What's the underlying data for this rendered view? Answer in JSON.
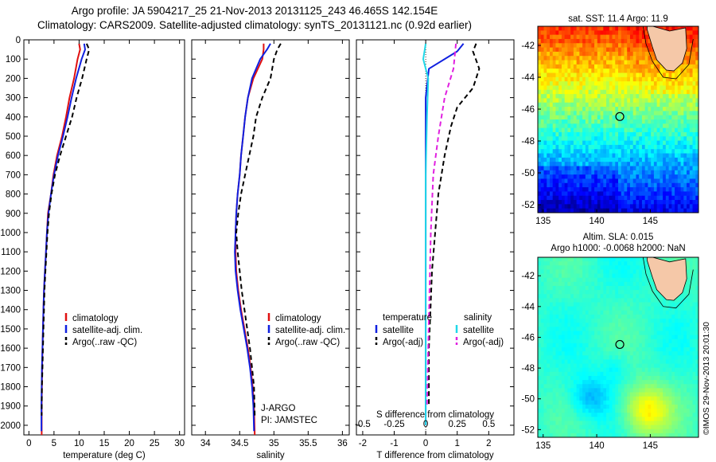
{
  "header": {
    "line1": "Argo profile: JA 5904217_25 21-Nov-2013 20131125_243 46.465S 142.154E",
    "line2": "Climatology: CARS2009. Satellite-adjusted climatology: synTS_20131121.nc (0.92d earlier)"
  },
  "colors": {
    "climatology": "#e01010",
    "satellite": "#1020e0",
    "argo": "#000000",
    "satellite_s": "#20d8e8",
    "argo_adj_s": "#e020e0"
  },
  "chart_data": [
    {
      "type": "line",
      "id": "temperature",
      "xlabel": "temperature (deg C)",
      "ylabel": "",
      "xlim": [
        -1,
        31
      ],
      "ylim": [
        2050,
        0
      ],
      "xticks": [
        0,
        5,
        10,
        15,
        20,
        25,
        30
      ],
      "yticks": [
        0,
        100,
        200,
        300,
        400,
        500,
        600,
        700,
        800,
        900,
        1000,
        1100,
        1200,
        1300,
        1400,
        1500,
        1600,
        1700,
        1800,
        1900,
        2000
      ],
      "legend": [
        "climatology",
        "satellite-adj. clim.",
        "Argo(..raw -QC)"
      ],
      "series": [
        {
          "name": "climatology",
          "style": "solid",
          "color": "#e01010",
          "x": [
            10.0,
            10.2,
            9.7,
            9.0,
            8.1,
            7.4,
            6.6,
            5.6,
            4.9,
            4.4,
            3.8,
            3.6,
            3.4,
            3.2,
            3.0,
            2.9,
            2.8,
            2.7,
            2.65,
            2.6,
            2.55,
            2.55
          ],
          "y": [
            20,
            50,
            100,
            200,
            300,
            400,
            500,
            600,
            700,
            800,
            900,
            1000,
            1100,
            1200,
            1300,
            1400,
            1500,
            1600,
            1700,
            1800,
            1900,
            2050
          ]
        },
        {
          "name": "satellite-adj. clim.",
          "style": "solid",
          "color": "#1020e0",
          "x": [
            11.0,
            11.2,
            10.5,
            9.4,
            8.5,
            7.7,
            6.8,
            5.8,
            5.0,
            4.4,
            3.9,
            3.6,
            3.4,
            3.2,
            3.0,
            2.9,
            2.8,
            2.7,
            2.6,
            2.55,
            2.5,
            2.5
          ],
          "y": [
            20,
            50,
            100,
            200,
            300,
            400,
            500,
            600,
            700,
            800,
            900,
            1000,
            1100,
            1200,
            1300,
            1400,
            1500,
            1600,
            1700,
            1800,
            1900,
            2030
          ]
        },
        {
          "name": "Argo(..raw -QC)",
          "style": "dashed",
          "color": "#000000",
          "x": [
            11.5,
            12.0,
            11.5,
            10.6,
            9.5,
            8.6,
            7.4,
            6.2,
            5.2,
            4.5,
            4.0,
            3.7,
            3.5,
            3.3,
            3.1,
            3.0,
            2.9,
            2.8,
            2.7,
            2.6,
            2.55
          ],
          "y": [
            20,
            50,
            100,
            200,
            300,
            400,
            500,
            600,
            700,
            800,
            900,
            1000,
            1100,
            1200,
            1300,
            1400,
            1500,
            1600,
            1700,
            1800,
            1950
          ]
        }
      ]
    },
    {
      "type": "line",
      "id": "salinity",
      "xlabel": "salinity",
      "ylabel": "",
      "xlim": [
        33.8,
        36.1
      ],
      "ylim": [
        2050,
        0
      ],
      "xticks": [
        34,
        34.5,
        35,
        35.5,
        36
      ],
      "xticklabels": [
        "34",
        "34.5",
        "35",
        "35.5",
        "36"
      ],
      "legend": [
        "climatology",
        "satellite-adj. clim.",
        "Argo(..raw -QC)"
      ],
      "annotation": [
        "J-ARGO",
        "PI: JAMSTEC"
      ],
      "series": [
        {
          "name": "climatology",
          "style": "solid",
          "color": "#e01010",
          "x": [
            34.85,
            34.85,
            34.83,
            34.7,
            34.62,
            34.58,
            34.55,
            34.52,
            34.5,
            34.47,
            34.45,
            34.44,
            34.44,
            34.45,
            34.48,
            34.52,
            34.57,
            34.62,
            34.66,
            34.69,
            34.71,
            34.72
          ],
          "y": [
            20,
            50,
            100,
            200,
            300,
            400,
            500,
            600,
            700,
            800,
            900,
            1000,
            1100,
            1200,
            1300,
            1400,
            1500,
            1600,
            1700,
            1800,
            1900,
            2050
          ]
        },
        {
          "name": "satellite-adj. clim.",
          "style": "solid",
          "color": "#1020e0",
          "x": [
            34.95,
            34.9,
            34.8,
            34.68,
            34.62,
            34.58,
            34.55,
            34.52,
            34.5,
            34.47,
            34.45,
            34.44,
            34.43,
            34.44,
            34.47,
            34.51,
            34.56,
            34.61,
            34.65,
            34.68,
            34.7,
            34.71
          ],
          "y": [
            20,
            50,
            100,
            200,
            300,
            400,
            500,
            600,
            700,
            800,
            900,
            1000,
            1100,
            1200,
            1300,
            1400,
            1500,
            1600,
            1700,
            1800,
            1900,
            2030
          ]
        },
        {
          "name": "Argo(..raw -QC)",
          "style": "dashed",
          "color": "#000000",
          "x": [
            35.1,
            35.05,
            35.0,
            34.95,
            34.83,
            34.74,
            34.7,
            34.64,
            34.58,
            34.52,
            34.48,
            34.45,
            34.47,
            34.5,
            34.53,
            34.57,
            34.61,
            34.65,
            34.68,
            34.71,
            34.72
          ],
          "y": [
            20,
            50,
            100,
            200,
            300,
            400,
            500,
            600,
            700,
            800,
            900,
            1000,
            1100,
            1200,
            1300,
            1400,
            1500,
            1600,
            1700,
            1800,
            1950
          ]
        }
      ]
    },
    {
      "type": "line",
      "id": "difference",
      "xlabel": "T difference from climatology",
      "xlabel2": "S difference from climatology",
      "ylabel": "",
      "xlim": [
        -2.2,
        2.8
      ],
      "ylim": [
        2050,
        0
      ],
      "xticks": [
        -2,
        -1,
        0,
        1,
        2
      ],
      "xticklabels": [
        "-2",
        "-1",
        "0",
        "1",
        "2"
      ],
      "xticks2": [
        -0.5,
        -0.25,
        0,
        0.25,
        0.5
      ],
      "xticklabels2": [
        "-0.5",
        "-0.25",
        "0",
        "0.25",
        "0.5"
      ],
      "legend_titles": [
        "temperature",
        "salinity"
      ],
      "legend": [
        "satellite",
        "Argo(-adj)",
        "satellite",
        "Argo(-adj)"
      ],
      "series": [
        {
          "name": "temperature satellite",
          "style": "solid",
          "color": "#1020e0",
          "x": [
            1.2,
            1.0,
            0.1,
            0.0,
            0.0,
            0.0,
            0.0,
            0.0,
            0.0,
            0.0,
            0.0,
            0.0,
            0.0
          ],
          "y": [
            20,
            60,
            150,
            300,
            500,
            700,
            900,
            1100,
            1300,
            1500,
            1700,
            1900,
            2000
          ]
        },
        {
          "name": "temperature Argo(-adj)",
          "style": "dashed",
          "color": "#000000",
          "x": [
            1.6,
            1.5,
            1.7,
            1.5,
            1.0,
            0.8,
            0.6,
            0.4,
            0.3,
            0.2,
            0.15,
            0.1,
            0.1
          ],
          "y": [
            20,
            60,
            150,
            250,
            350,
            450,
            600,
            800,
            1000,
            1200,
            1400,
            1600,
            1900
          ]
        },
        {
          "name": "salinity satellite",
          "style": "solid",
          "color": "#20d8e8",
          "x": [
            0.0,
            -0.02,
            0.02,
            0.01,
            0.0,
            0.0,
            0.0,
            0.0,
            0.0
          ],
          "y": [
            20,
            100,
            200,
            400,
            700,
            1000,
            1300,
            1700,
            2000
          ]
        },
        {
          "name": "salinity Argo(-adj)",
          "style": "dashed",
          "color": "#e020e0",
          "x": [
            0.24,
            0.22,
            0.15,
            0.1,
            0.06,
            0.04,
            0.03,
            0.02,
            0.01
          ],
          "y": [
            20,
            150,
            300,
            500,
            700,
            1000,
            1300,
            1600,
            1900
          ]
        }
      ]
    },
    {
      "type": "heatmap",
      "id": "sst_map",
      "title": "sat. SST: 11.4 Argo: 11.9",
      "xlim": [
        134.5,
        149.5
      ],
      "ylim": [
        -52.5,
        -40.8
      ],
      "xticks": [
        135,
        140,
        145
      ],
      "yticks": [
        -42,
        -44,
        -46,
        -48,
        -50,
        -52
      ],
      "argo_position": [
        142.154,
        -46.465
      ]
    },
    {
      "type": "heatmap",
      "id": "sla_map",
      "title": [
        "Altim. SLA: 0.015",
        "Argo h1000: -0.0068 h2000: NaN"
      ],
      "xlim": [
        134.5,
        149.5
      ],
      "ylim": [
        -52.5,
        -40.8
      ],
      "xticks": [
        135,
        140,
        145
      ],
      "yticks": [
        -42,
        -44,
        -46,
        -48,
        -50,
        -52
      ],
      "argo_position": [
        142.154,
        -46.465
      ]
    }
  ],
  "timestamp": "©IMOS 29-Nov-2013 20:01:30"
}
